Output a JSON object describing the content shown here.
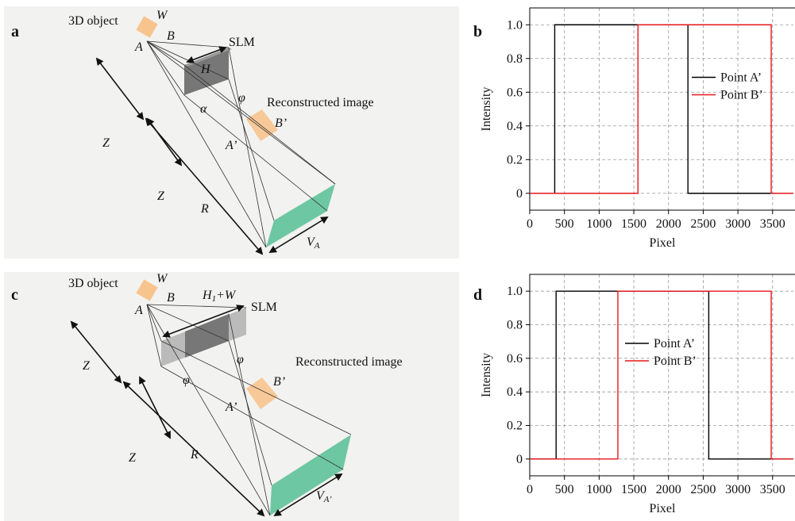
{
  "panels": [
    "a",
    "b",
    "c",
    "d"
  ],
  "diagram_a": {
    "object": "3D object",
    "W": "W",
    "B": "B",
    "A": "A",
    "slm": "SLM",
    "H": "H",
    "Z1": "Z",
    "Z2": "Z",
    "phi": "φ",
    "alpha": "α",
    "recon": "Reconstructed image",
    "B2": "B’",
    "A2": "A’",
    "R": "R",
    "V": "V",
    "V_sub": "A"
  },
  "diagram_c": {
    "object": "3D object",
    "W": "W",
    "B": "B",
    "A": "A",
    "slm": "SLM",
    "H": "H",
    "H_sub": "1",
    "H_rest": "+W",
    "Z1": "Z",
    "Z2": "Z",
    "phi": "φ",
    "phi2": "φ",
    "recon": "Reconstructed image",
    "B2": "B’",
    "A2": "A’",
    "R": "R",
    "V": "V",
    "V_sub": "A’"
  },
  "chart_data": [
    {
      "type": "line",
      "xlabel": "Pixel",
      "ylabel": "Intensity",
      "xlim": [
        0,
        3800
      ],
      "ylim": [
        -0.1,
        1.1
      ],
      "xticks": [
        0,
        500,
        1000,
        1500,
        2000,
        2500,
        3000,
        3500
      ],
      "yticks": [
        0,
        0.2,
        0.4,
        0.6,
        0.8,
        {
          "value": 1,
          "label": "1.0"
        }
      ],
      "grid": true,
      "legend": "right",
      "series": [
        {
          "name": "Point A’",
          "color": "#000000",
          "x": [
            0,
            360,
            360,
            2280,
            2280,
            3800
          ],
          "values": [
            0,
            0,
            1,
            1,
            0,
            0
          ]
        },
        {
          "name": "Point B’",
          "color": "#e8161b",
          "x": [
            0,
            1560,
            1560,
            3480,
            3480,
            3800
          ],
          "values": [
            0,
            0,
            1,
            1,
            0,
            0
          ]
        }
      ]
    },
    {
      "type": "line",
      "xlabel": "Pixel",
      "ylabel": "Intensity",
      "xlim": [
        0,
        3800
      ],
      "ylim": [
        -0.1,
        1.1
      ],
      "xticks": [
        0,
        500,
        1000,
        1500,
        2000,
        2500,
        3000,
        3500
      ],
      "yticks": [
        0,
        0.2,
        0.4,
        0.6,
        0.8,
        {
          "value": 1,
          "label": "1.0"
        }
      ],
      "grid": true,
      "legend": "center",
      "series": [
        {
          "name": "Point A’",
          "color": "#000000",
          "x": [
            0,
            380,
            380,
            2580,
            2580,
            3800
          ],
          "values": [
            0,
            0,
            1,
            1,
            0,
            0
          ]
        },
        {
          "name": "Point B’",
          "color": "#e8161b",
          "x": [
            0,
            1270,
            1270,
            3480,
            3480,
            3800
          ],
          "values": [
            0,
            0,
            1,
            1,
            0,
            0
          ]
        }
      ]
    }
  ]
}
